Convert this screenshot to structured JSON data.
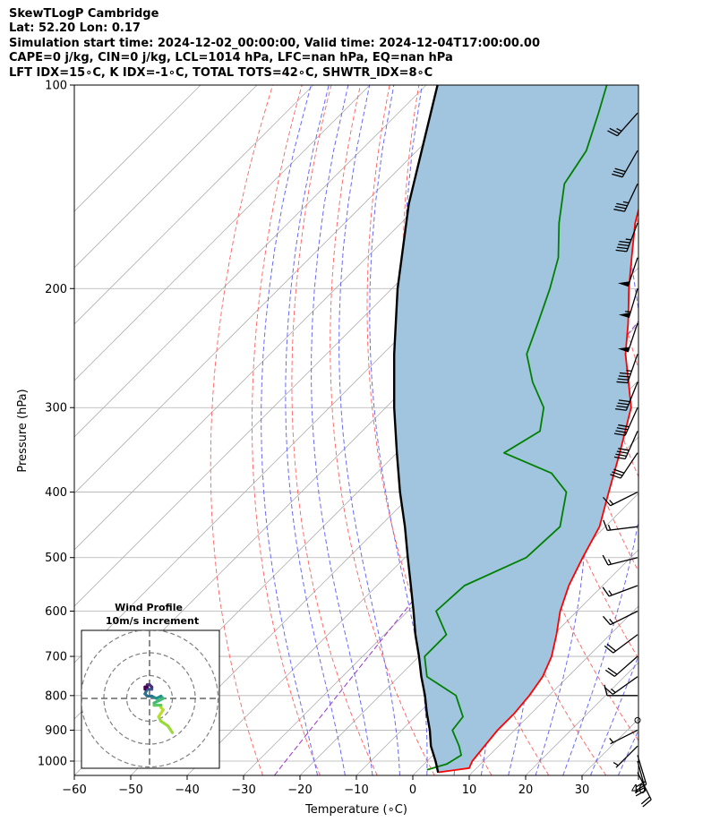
{
  "header": {
    "line1": "SkewTLogP Cambridge",
    "line2": "Lat: 52.20   Lon: 0.17",
    "line3": "Simulation start time: 2024-12-02_00:00:00, Valid time: 2024-12-04T17:00:00.00",
    "line4": "CAPE=0 j/kg, CIN=0 j/kg, LCL=1014 hPa, LFC=nan hPa, EQ=nan hPa",
    "line5": "LFT IDX=15∘C, K IDX=-1∘C, TOTAL TOTS=42∘C, SHWTR_IDX=8∘C"
  },
  "chart_data": {
    "type": "line",
    "subtype": "skew-T log-P",
    "xlabel": "Temperature (∘C)",
    "ylabel": "Pressure (hPa)",
    "xlim": [
      -60,
      40
    ],
    "ylim": [
      1050,
      100
    ],
    "x_ticks": [
      "−60",
      "−50",
      "−40",
      "−30",
      "−20",
      "−10",
      "0",
      "10",
      "20",
      "30",
      "40"
    ],
    "y_ticks": [
      "100",
      "200",
      "300",
      "400",
      "500",
      "600",
      "700",
      "800",
      "900",
      "1000"
    ],
    "log_pressure": true,
    "grid": true,
    "series": [
      {
        "name": "",
        "kind": "temperature",
        "color": "#ff0000",
        "points": [
          [
            1039,
            4.0
          ],
          [
            1024,
            8.7
          ],
          [
            1000,
            8.0
          ],
          [
            950,
            7.5
          ],
          [
            900,
            7.0
          ],
          [
            850,
            7.0
          ],
          [
            800,
            6.5
          ],
          [
            750,
            5.5
          ],
          [
            700,
            3.5
          ],
          [
            650,
            0.5
          ],
          [
            600,
            -3.0
          ],
          [
            550,
            -6.0
          ],
          [
            500,
            -8.5
          ],
          [
            450,
            -11.0
          ],
          [
            400,
            -15.5
          ],
          [
            350,
            -20.5
          ],
          [
            300,
            -26.5
          ],
          [
            275,
            -31.5
          ],
          [
            250,
            -37.0
          ],
          [
            225,
            -42.0
          ],
          [
            200,
            -48.0
          ],
          [
            180,
            -53.0
          ],
          [
            160,
            -58.5
          ],
          [
            150,
            -61.0
          ],
          [
            135,
            -63.0
          ],
          [
            120,
            -66.0
          ],
          [
            110,
            -72.0
          ],
          [
            100,
            -79.0
          ]
        ]
      },
      {
        "name": "",
        "kind": "dewpoint",
        "color": "#008000",
        "points": [
          [
            1030,
            1.5
          ],
          [
            1010,
            4.0
          ],
          [
            980,
            5.0
          ],
          [
            950,
            3.0
          ],
          [
            900,
            -1.0
          ],
          [
            860,
            -1.5
          ],
          [
            800,
            -6.5
          ],
          [
            750,
            -15.0
          ],
          [
            700,
            -19.0
          ],
          [
            650,
            -19.0
          ],
          [
            600,
            -25.0
          ],
          [
            550,
            -24.5
          ],
          [
            500,
            -18.5
          ],
          [
            450,
            -18.0
          ],
          [
            400,
            -23.0
          ],
          [
            375,
            -29.0
          ],
          [
            350,
            -41.0
          ],
          [
            325,
            -38.5
          ],
          [
            300,
            -42.0
          ],
          [
            275,
            -48.5
          ],
          [
            250,
            -54.5
          ],
          [
            225,
            -58.0
          ],
          [
            200,
            -62.0
          ],
          [
            180,
            -66.0
          ],
          [
            160,
            -72.0
          ],
          [
            140,
            -78.0
          ],
          [
            125,
            -80.0
          ],
          [
            110,
            -84.5
          ],
          [
            100,
            -88.0
          ]
        ]
      },
      {
        "name": "",
        "kind": "parcel",
        "color": "#000000",
        "points": [
          [
            1040,
            4.0
          ],
          [
            1000,
            1.5
          ],
          [
            950,
            -2.0
          ],
          [
            900,
            -5.0
          ],
          [
            850,
            -8.5
          ],
          [
            800,
            -12.0
          ],
          [
            750,
            -16.0
          ],
          [
            700,
            -20.0
          ],
          [
            650,
            -24.5
          ],
          [
            600,
            -29.0
          ],
          [
            550,
            -34.0
          ],
          [
            500,
            -39.5
          ],
          [
            450,
            -45.5
          ],
          [
            400,
            -52.5
          ],
          [
            350,
            -60.0
          ],
          [
            300,
            -68.5
          ],
          [
            250,
            -78.0
          ],
          [
            200,
            -89.0
          ],
          [
            150,
            -102.0
          ],
          [
            100,
            -118.0
          ]
        ]
      }
    ],
    "shaded_region": {
      "between": [
        "parcel",
        "temperature"
      ],
      "color": "#a1c5de"
    },
    "wind_barbs": {
      "pressures": [
        1039,
        1000,
        980,
        950,
        900,
        870,
        800,
        750,
        700,
        650,
        600,
        550,
        500,
        450,
        400,
        350,
        325,
        300,
        275,
        250,
        225,
        200,
        180,
        160,
        140,
        125,
        110
      ],
      "u": [
        -5,
        -3,
        -3,
        2,
        2,
        1,
        5,
        7,
        8,
        8,
        8,
        8,
        8,
        8,
        8,
        8,
        8,
        8,
        8,
        8,
        8,
        8,
        8,
        8,
        8,
        8,
        8
      ],
      "v": [
        10,
        11,
        10,
        2,
        1,
        0,
        0,
        5,
        7,
        6,
        4,
        3,
        2,
        1,
        4,
        12,
        18,
        18,
        20,
        23,
        24,
        27,
        24,
        21,
        17,
        14,
        9
      ]
    },
    "hodograph": {
      "title": "Wind Profile",
      "subtitle": "10m/s increment",
      "rings": 3,
      "points": [
        [
          10,
          -15
        ],
        [
          8,
          -12
        ],
        [
          5,
          -10
        ],
        [
          4,
          -8
        ],
        [
          6,
          -5
        ],
        [
          5,
          -4
        ],
        [
          5,
          -3
        ],
        [
          2,
          -3
        ],
        [
          2,
          -2
        ],
        [
          4,
          -1
        ],
        [
          6,
          0
        ],
        [
          5,
          1
        ],
        [
          3,
          0
        ],
        [
          1,
          1
        ],
        [
          -1,
          1
        ],
        [
          -2,
          2
        ],
        [
          -1,
          4
        ],
        [
          1,
          4
        ],
        [
          1,
          5
        ],
        [
          0,
          6
        ],
        [
          -1,
          6
        ],
        [
          -1,
          5
        ],
        [
          -2,
          5
        ],
        [
          -2,
          4
        ]
      ],
      "colormap": "viridis"
    }
  }
}
